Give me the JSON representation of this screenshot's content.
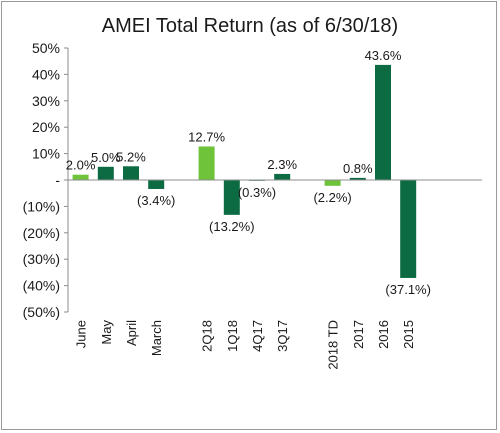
{
  "chart_data": {
    "type": "bar",
    "title": "AMEI Total Return (as of 6/30/18)",
    "xlabel": "",
    "ylabel": "",
    "ylim": [
      -50,
      50
    ],
    "grid": false,
    "legend": "none",
    "y_ticks": [
      {
        "value": 50,
        "label": "50%"
      },
      {
        "value": 40,
        "label": "40%"
      },
      {
        "value": 30,
        "label": "30%"
      },
      {
        "value": 20,
        "label": "20%"
      },
      {
        "value": 10,
        "label": "10%"
      },
      {
        "value": 0,
        "label": "-"
      },
      {
        "value": -10,
        "label": "(10%)"
      },
      {
        "value": -20,
        "label": "(20%)"
      },
      {
        "value": -30,
        "label": "(30%)"
      },
      {
        "value": -40,
        "label": "(40%)"
      },
      {
        "value": -50,
        "label": "(50%)"
      }
    ],
    "groups": [
      {
        "bars": [
          {
            "category": "June",
            "value": 2.0,
            "label": "2.0%",
            "color": "#6ec33b"
          },
          {
            "category": "May",
            "value": 5.0,
            "label": "5.0%",
            "color": "#0d6b43"
          },
          {
            "category": "April",
            "value": 5.2,
            "label": "5.2%",
            "color": "#0d6b43"
          },
          {
            "category": "March",
            "value": -3.4,
            "label": "(3.4%)",
            "color": "#0d6b43"
          }
        ]
      },
      {
        "bars": [
          {
            "category": "2Q18",
            "value": 12.7,
            "label": "12.7%",
            "color": "#6ec33b"
          },
          {
            "category": "1Q18",
            "value": -13.2,
            "label": "(13.2%)",
            "color": "#0d6b43"
          },
          {
            "category": "4Q17",
            "value": -0.3,
            "label": "(0.3%)",
            "color": "#0d6b43"
          },
          {
            "category": "3Q17",
            "value": 2.3,
            "label": "2.3%",
            "color": "#0d6b43"
          }
        ]
      },
      {
        "bars": [
          {
            "category": "2018 TD",
            "value": -2.2,
            "label": "(2.2%)",
            "color": "#6ec33b"
          },
          {
            "category": "2017",
            "value": 0.8,
            "label": "0.8%",
            "color": "#0d6b43"
          },
          {
            "category": "2016",
            "value": 43.6,
            "label": "43.6%",
            "color": "#0d6b43"
          },
          {
            "category": "2015",
            "value": -37.1,
            "label": "(37.1%)",
            "color": "#0d6b43"
          }
        ]
      }
    ]
  }
}
